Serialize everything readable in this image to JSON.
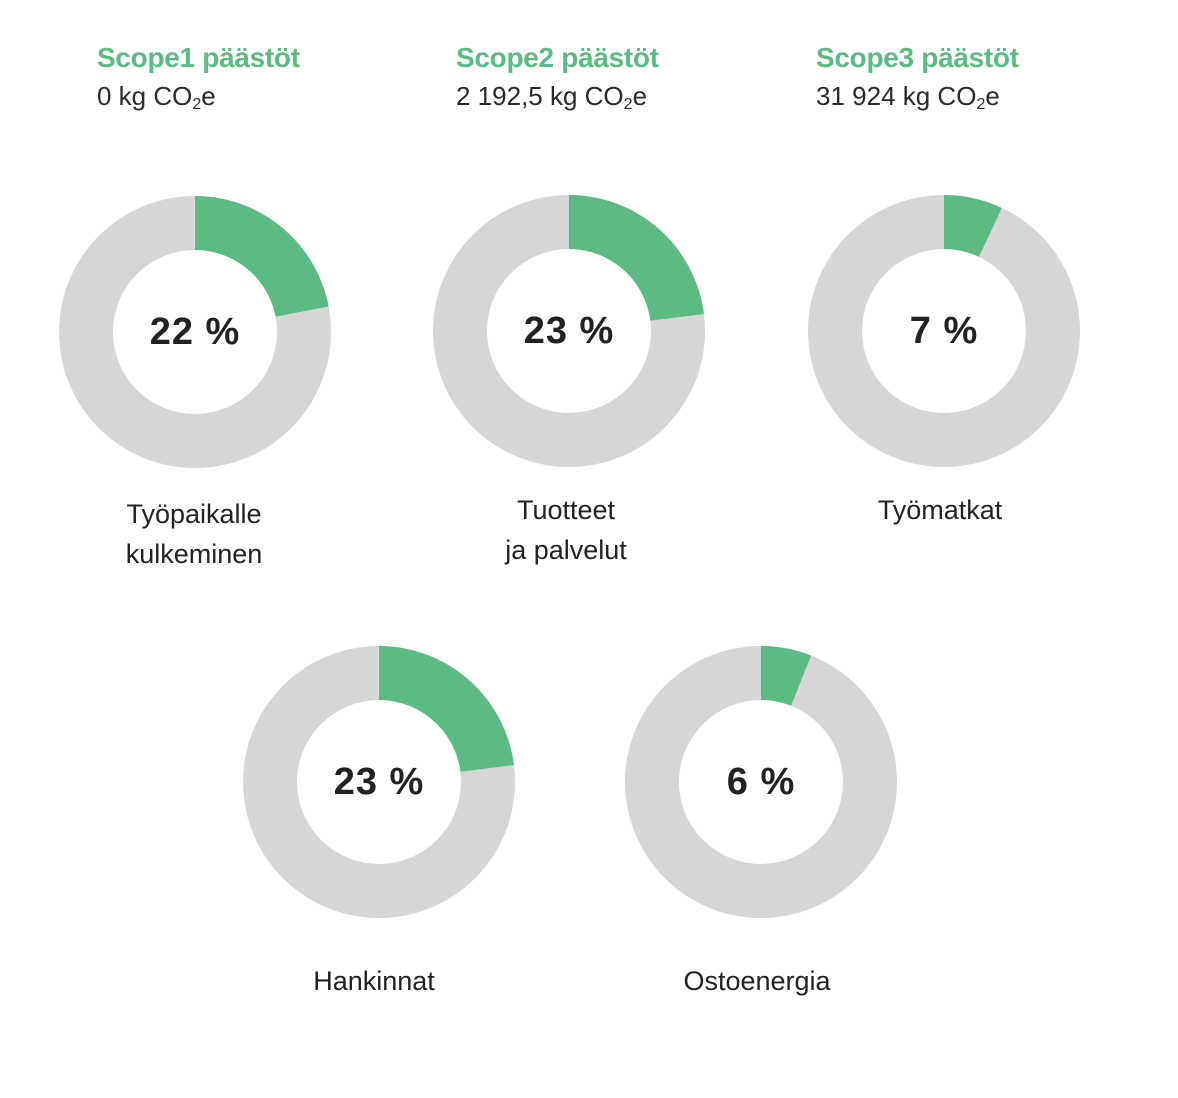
{
  "scopes": [
    {
      "title": "Scope1 päästöt",
      "amount": "0 kg CO",
      "sub": "2",
      "unit_suffix": "e"
    },
    {
      "title": "Scope2 päästöt",
      "amount": "2 192,5 kg CO",
      "sub": "2",
      "unit_suffix": "e"
    },
    {
      "title": "Scope3 päästöt",
      "amount": "31 924 kg CO",
      "sub": "2",
      "unit_suffix": "e"
    }
  ],
  "colors": {
    "accent": "#5cbb83",
    "track": "#d6d6d6",
    "hole": "#ffffff"
  },
  "chart_data": [
    {
      "type": "pie",
      "label_lines": [
        "Työpaikalle",
        "kulkeminen"
      ],
      "value_text": "22 %",
      "values": [
        22,
        78
      ]
    },
    {
      "type": "pie",
      "label_lines": [
        "Tuotteet",
        "ja palvelut"
      ],
      "value_text": "23 %",
      "values": [
        23,
        77
      ]
    },
    {
      "type": "pie",
      "label_lines": [
        "Työmatkat"
      ],
      "value_text": "7 %",
      "values": [
        7,
        93
      ]
    },
    {
      "type": "pie",
      "label_lines": [
        "Hankinnat"
      ],
      "value_text": "23 %",
      "values": [
        23,
        77
      ]
    },
    {
      "type": "pie",
      "label_lines": [
        "Ostoenergia"
      ],
      "value_text": "6 %",
      "values": [
        6,
        94
      ]
    }
  ]
}
